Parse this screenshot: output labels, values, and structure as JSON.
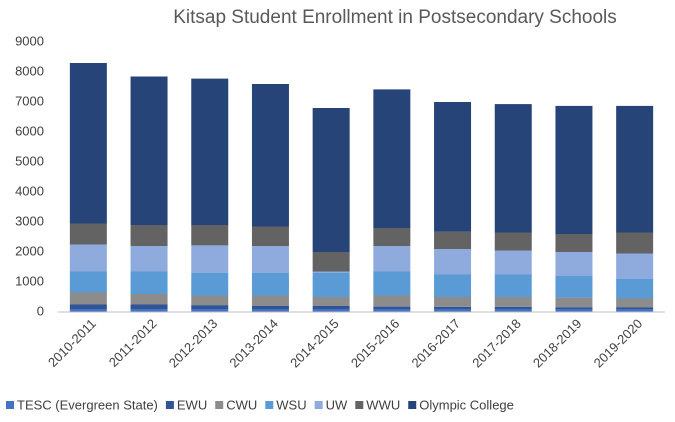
{
  "chart_data": {
    "type": "stacked_bar",
    "title": "Kitsap Student Enrollment in Postsecondary Schools",
    "categories": [
      "2010-2011",
      "2011-2012",
      "2012-2013",
      "2013-2014",
      "2014-2015",
      "2015-2016",
      "2016-2017",
      "2017-2018",
      "2018-2019",
      "2019-2020"
    ],
    "series": [
      {
        "name": "TESC (Evergreen State)",
        "color": "#4472c4",
        "values": [
          100,
          100,
          100,
          100,
          100,
          100,
          100,
          100,
          100,
          100
        ]
      },
      {
        "name": "EWU",
        "color": "#2f5597",
        "values": [
          150,
          150,
          130,
          100,
          100,
          80,
          70,
          70,
          60,
          50
        ]
      },
      {
        "name": "CWU",
        "color": "#8c8c8c",
        "values": [
          400,
          350,
          320,
          350,
          300,
          370,
          330,
          330,
          320,
          300
        ]
      },
      {
        "name": "WSU",
        "color": "#5b9bd5",
        "values": [
          700,
          750,
          750,
          750,
          800,
          800,
          750,
          750,
          720,
          650
        ]
      },
      {
        "name": "UW",
        "color": "#8faadc",
        "values": [
          900,
          850,
          920,
          900,
          50,
          850,
          850,
          800,
          800,
          850
        ]
      },
      {
        "name": "WWU",
        "color": "#636363",
        "values": [
          700,
          700,
          680,
          650,
          650,
          600,
          580,
          600,
          600,
          700
        ]
      },
      {
        "name": "Olympic College",
        "color": "#264478",
        "values": [
          5350,
          4950,
          4880,
          4750,
          4800,
          4620,
          4320,
          4280,
          4270,
          4220
        ]
      }
    ],
    "ylim": [
      0,
      9000
    ],
    "yticks": [
      0,
      1000,
      2000,
      3000,
      4000,
      5000,
      6000,
      7000,
      8000,
      9000
    ],
    "grid": false
  }
}
